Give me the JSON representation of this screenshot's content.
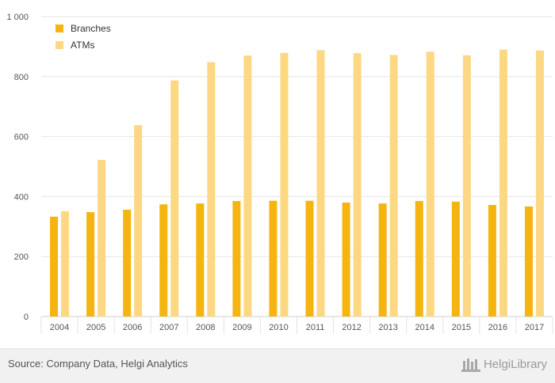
{
  "chart_data": {
    "type": "bar",
    "categories": [
      "2004",
      "2005",
      "2006",
      "2007",
      "2008",
      "2009",
      "2010",
      "2011",
      "2012",
      "2013",
      "2014",
      "2015",
      "2016",
      "2017"
    ],
    "series": [
      {
        "name": "Branches",
        "color": "#f5b40f",
        "values": [
          333,
          348,
          356,
          374,
          377,
          385,
          386,
          386,
          380,
          377,
          385,
          383,
          372,
          367
        ]
      },
      {
        "name": "ATMs",
        "color": "#fcd882",
        "values": [
          351,
          522,
          638,
          787,
          848,
          870,
          879,
          888,
          878,
          872,
          883,
          871,
          890,
          887
        ]
      }
    ],
    "ylim": [
      0,
      1000
    ],
    "yticks": [
      0,
      200,
      400,
      600,
      800,
      1000
    ],
    "ytick_labels": [
      "0",
      "200",
      "400",
      "600",
      "800",
      "1 000"
    ],
    "legend_position": "top-left",
    "grid": true
  },
  "footer": {
    "source": "Source: Company Data, Helgi Analytics",
    "brand": "HelgiLibrary",
    "brand_logo_icon": "helgi-library-logo-icon"
  }
}
